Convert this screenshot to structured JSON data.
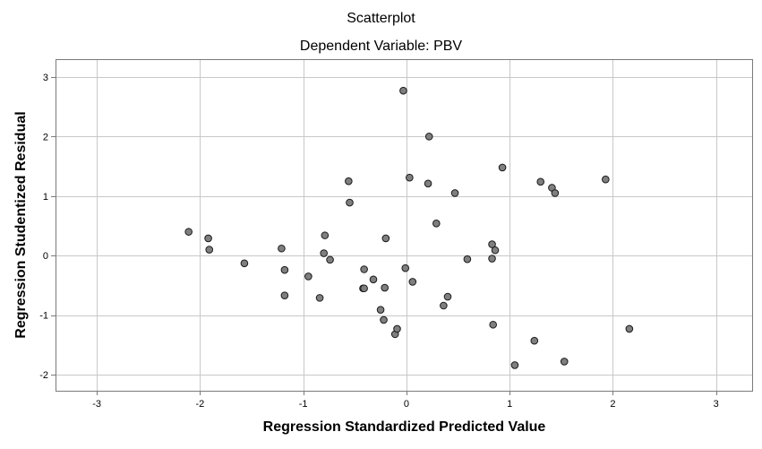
{
  "chart_data": {
    "type": "scatter",
    "title": "Scatterplot",
    "subtitle": "Dependent Variable: PBV",
    "xlabel": "Regression Standardized Predicted Value",
    "ylabel": "Regression Studentized Residual",
    "xlim": [
      -3.4,
      3.35
    ],
    "ylim": [
      -2.27,
      3.3
    ],
    "xticks": [
      -3,
      -2,
      -1,
      0,
      1,
      2,
      3
    ],
    "yticks": [
      -2,
      -1,
      0,
      1,
      2,
      3
    ],
    "grid": true,
    "marker_color": "#7f7f7f",
    "points": [
      {
        "x": -2.11,
        "y": 0.4
      },
      {
        "x": -1.92,
        "y": 0.29
      },
      {
        "x": -1.91,
        "y": 0.1
      },
      {
        "x": -1.57,
        "y": -0.13
      },
      {
        "x": -1.21,
        "y": 0.12
      },
      {
        "x": -1.18,
        "y": -0.24
      },
      {
        "x": -1.18,
        "y": -0.67
      },
      {
        "x": -0.95,
        "y": -0.35
      },
      {
        "x": -0.84,
        "y": -0.71
      },
      {
        "x": -0.8,
        "y": 0.04
      },
      {
        "x": -0.79,
        "y": 0.34
      },
      {
        "x": -0.74,
        "y": -0.07
      },
      {
        "x": -0.56,
        "y": 1.25
      },
      {
        "x": -0.55,
        "y": 0.89
      },
      {
        "x": -0.42,
        "y": -0.55
      },
      {
        "x": -0.41,
        "y": -0.23
      },
      {
        "x": -0.41,
        "y": -0.55
      },
      {
        "x": -0.32,
        "y": -0.4
      },
      {
        "x": -0.25,
        "y": -0.91
      },
      {
        "x": -0.22,
        "y": -1.08
      },
      {
        "x": -0.21,
        "y": -0.54
      },
      {
        "x": -0.2,
        "y": 0.29
      },
      {
        "x": -0.11,
        "y": -1.32
      },
      {
        "x": -0.09,
        "y": -1.23
      },
      {
        "x": -0.03,
        "y": 2.77
      },
      {
        "x": -0.01,
        "y": -0.21
      },
      {
        "x": 0.03,
        "y": 1.31
      },
      {
        "x": 0.06,
        "y": -0.44
      },
      {
        "x": 0.21,
        "y": 1.21
      },
      {
        "x": 0.22,
        "y": 2.0
      },
      {
        "x": 0.29,
        "y": 0.54
      },
      {
        "x": 0.36,
        "y": -0.84
      },
      {
        "x": 0.4,
        "y": -0.69
      },
      {
        "x": 0.47,
        "y": 1.05
      },
      {
        "x": 0.59,
        "y": -0.06
      },
      {
        "x": 0.83,
        "y": -0.05
      },
      {
        "x": 0.83,
        "y": 0.19
      },
      {
        "x": 0.84,
        "y": -1.16
      },
      {
        "x": 0.86,
        "y": 0.09
      },
      {
        "x": 0.93,
        "y": 1.48
      },
      {
        "x": 1.05,
        "y": -1.84
      },
      {
        "x": 1.24,
        "y": -1.43
      },
      {
        "x": 1.3,
        "y": 1.24
      },
      {
        "x": 1.41,
        "y": 1.14
      },
      {
        "x": 1.44,
        "y": 1.05
      },
      {
        "x": 1.53,
        "y": -1.78
      },
      {
        "x": 1.93,
        "y": 1.28
      },
      {
        "x": 2.16,
        "y": -1.23
      }
    ]
  }
}
